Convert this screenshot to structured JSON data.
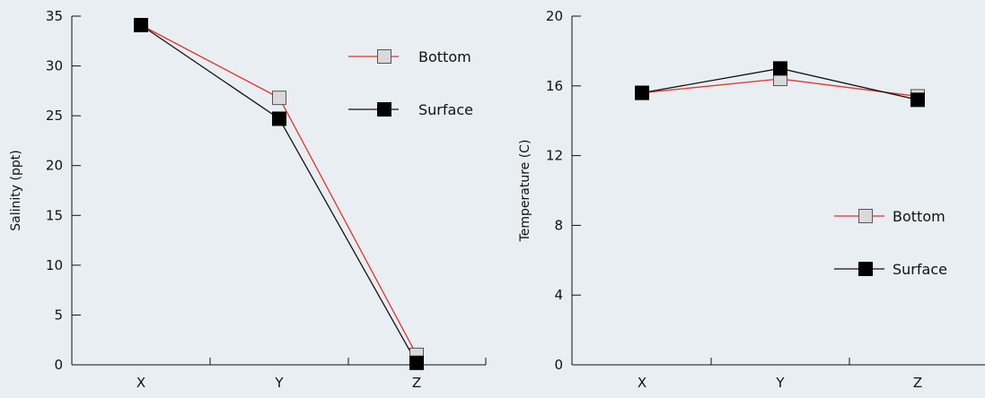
{
  "colors": {
    "background": "#e9eef2",
    "axis": "#111111",
    "bottom_line": "#e0322e",
    "bottom_marker_fill": "#d9d9d9",
    "bottom_marker_stroke": "#555555",
    "surface_line": "#111111",
    "surface_marker_fill": "#000000"
  },
  "chart_data": [
    {
      "type": "line",
      "title": "",
      "xlabel": "",
      "ylabel": "Salinity (ppt)",
      "categories": [
        "X",
        "Y",
        "Z"
      ],
      "ylim": [
        0,
        35
      ],
      "yticks": [
        0,
        5,
        10,
        15,
        20,
        25,
        30,
        35
      ],
      "ytick_labels": [
        "0",
        "5",
        "10",
        "15",
        "20",
        "25",
        "30",
        "35"
      ],
      "grid": false,
      "legend": "top-right",
      "series": [
        {
          "name": "Bottom",
          "values": [
            34.1,
            26.8,
            1.0
          ],
          "marker": "open-square"
        },
        {
          "name": "Surface",
          "values": [
            34.1,
            24.7,
            0.2
          ],
          "marker": "filled-square"
        }
      ]
    },
    {
      "type": "line",
      "title": "",
      "xlabel": "",
      "ylabel": "Temperature (C)",
      "categories": [
        "X",
        "Y",
        "Z"
      ],
      "ylim": [
        0,
        20
      ],
      "yticks": [
        0,
        4,
        8,
        12,
        16,
        20
      ],
      "ytick_labels": [
        "0",
        "4",
        "8",
        "12",
        "16",
        "20"
      ],
      "grid": false,
      "legend": "right",
      "series": [
        {
          "name": "Bottom",
          "values": [
            15.6,
            16.4,
            15.4
          ],
          "marker": "open-square"
        },
        {
          "name": "Surface",
          "values": [
            15.6,
            17.0,
            15.2
          ],
          "marker": "filled-square"
        }
      ]
    }
  ]
}
